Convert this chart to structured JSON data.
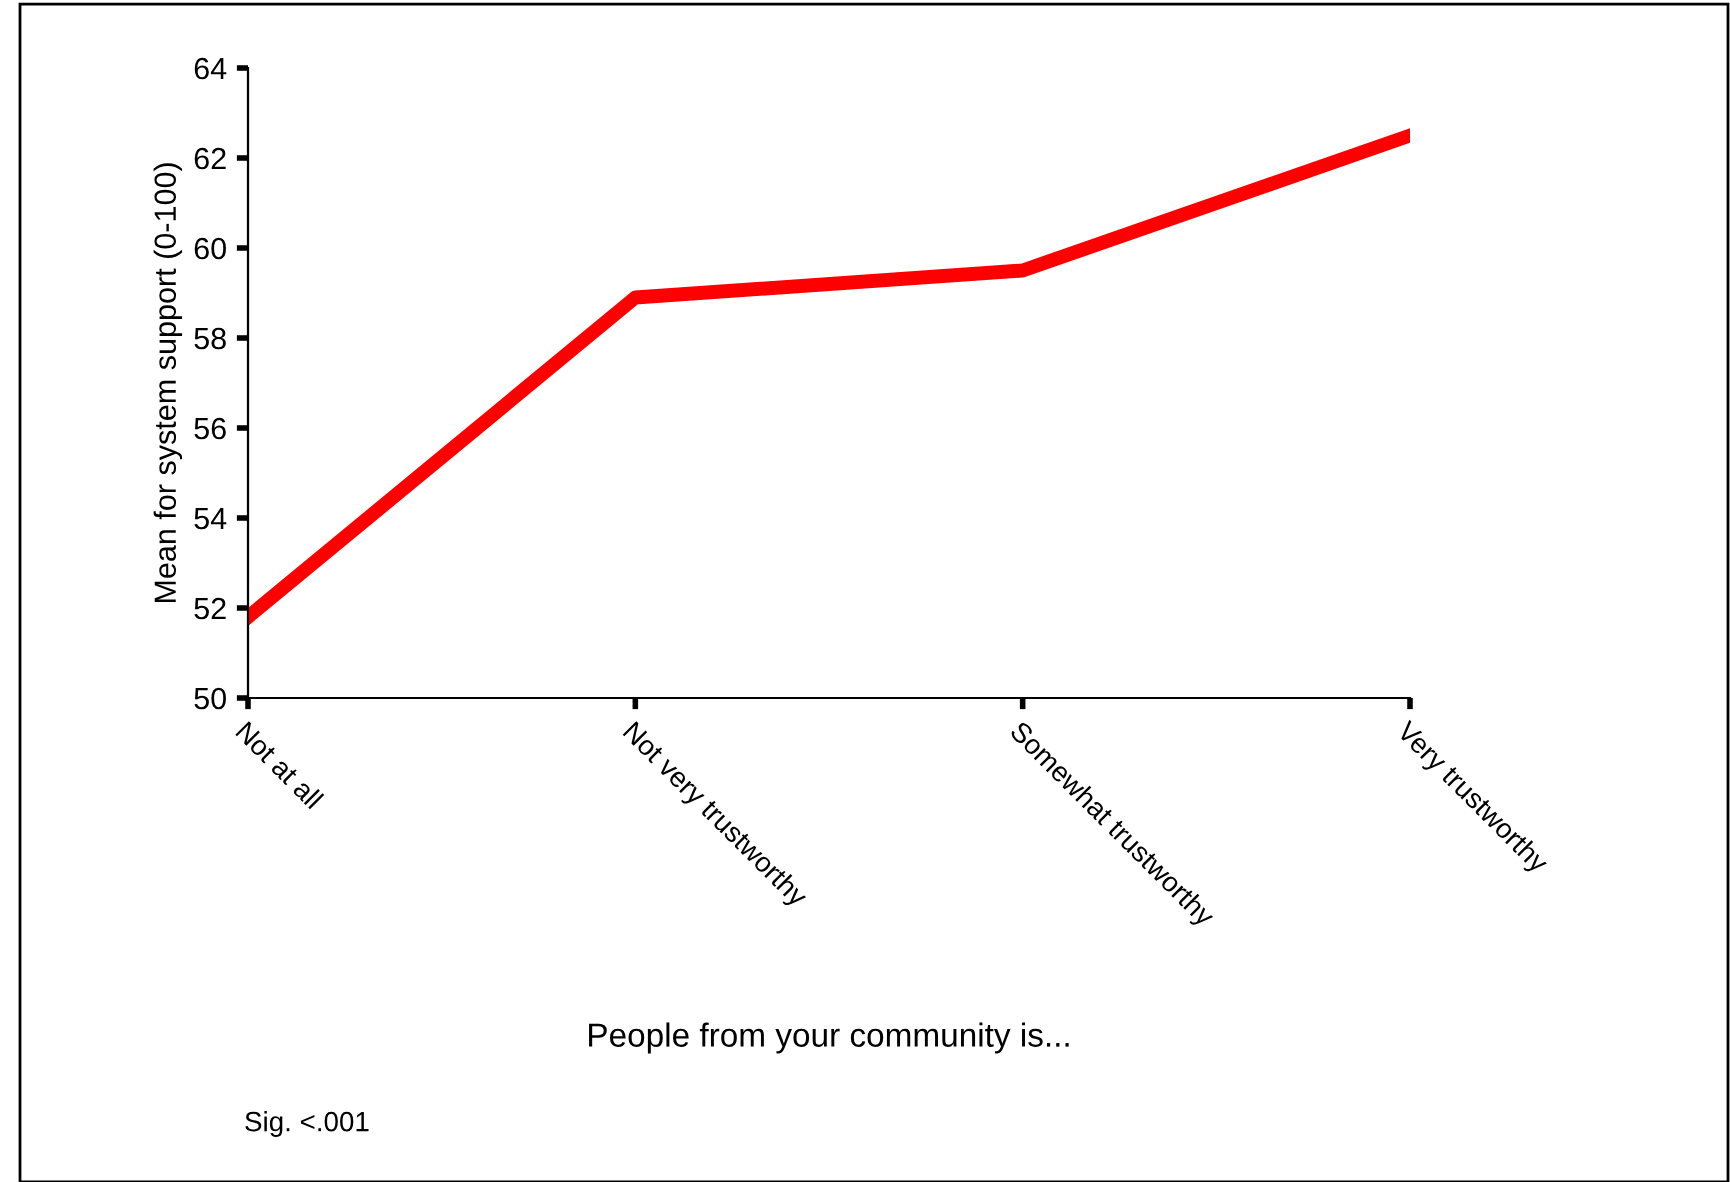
{
  "chart_data": {
    "type": "line",
    "xlabel": "People from your community is...",
    "ylabel": "Mean for system support (0-100)",
    "categories": [
      "Not at all",
      "Not very trustworthy",
      "Somewhat trustworthy",
      "Very trustworthy"
    ],
    "series": [
      {
        "color": "#ff0000",
        "values": [
          51.8,
          58.9,
          59.5,
          62.5
        ]
      }
    ],
    "ylim": [
      50,
      64
    ],
    "yticks": [
      50,
      52,
      54,
      56,
      58,
      60,
      62,
      64
    ],
    "grid": false,
    "legend": false,
    "marker": "none",
    "line_style": "solid",
    "annotations": [
      "Sig. <.001"
    ]
  }
}
